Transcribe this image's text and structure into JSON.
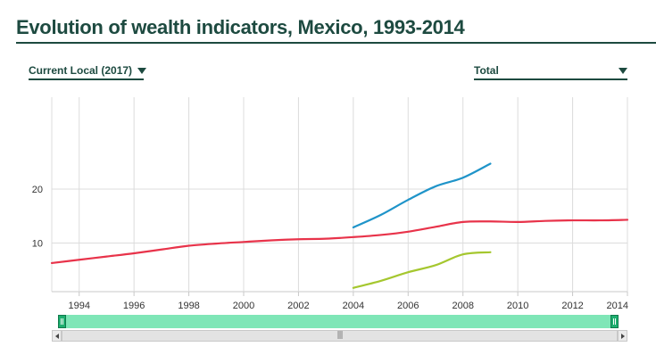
{
  "header": {
    "title": "Evolution of wealth indicators, Mexico, 1993-2014"
  },
  "controls": {
    "currency_select": "Current Local (2017)",
    "breakdown_select": "Total"
  },
  "colors": {
    "red_series": "#e8334a",
    "blue_series": "#1f94c9",
    "green_series": "#a5c72f",
    "grid": "#dcdcdc",
    "navigator": "#7fe6b7"
  },
  "chart_data": {
    "type": "line",
    "title": "Evolution of wealth indicators, Mexico, 1993-2014",
    "xlabel": "",
    "ylabel": "",
    "xlim": [
      1993,
      2014
    ],
    "ylim": [
      1,
      37
    ],
    "x_ticks": [
      "1994",
      "1996",
      "1998",
      "2000",
      "2002",
      "2004",
      "2006",
      "2008",
      "2010",
      "2012",
      "2014"
    ],
    "y_ticks": [
      "10",
      "20"
    ],
    "grid": true,
    "legend": "none",
    "series": [
      {
        "color": "#e8334a",
        "x": [
          1993,
          1994,
          1995,
          1996,
          1997,
          1998,
          1999,
          2000,
          2001,
          2002,
          2003,
          2004,
          2005,
          2006,
          2007,
          2008,
          2009,
          2010,
          2011,
          2012,
          2013,
          2014
        ],
        "values": [
          6.3,
          6.9,
          7.5,
          8.1,
          8.8,
          9.5,
          9.9,
          10.2,
          10.5,
          10.7,
          10.8,
          11.1,
          11.5,
          12.1,
          13.0,
          13.9,
          14.0,
          13.9,
          14.1,
          14.2,
          14.2,
          14.3
        ]
      },
      {
        "color": "#1f94c9",
        "x": [
          2004,
          2005,
          2006,
          2007,
          2008,
          2009
        ],
        "values": [
          12.9,
          15.2,
          18.0,
          20.5,
          22.1,
          24.7
        ]
      },
      {
        "color": "#a5c72f",
        "x": [
          2004,
          2005,
          2006,
          2007,
          2008,
          2009
        ],
        "values": [
          1.7,
          3.0,
          4.6,
          5.9,
          7.9,
          8.3
        ]
      }
    ]
  }
}
